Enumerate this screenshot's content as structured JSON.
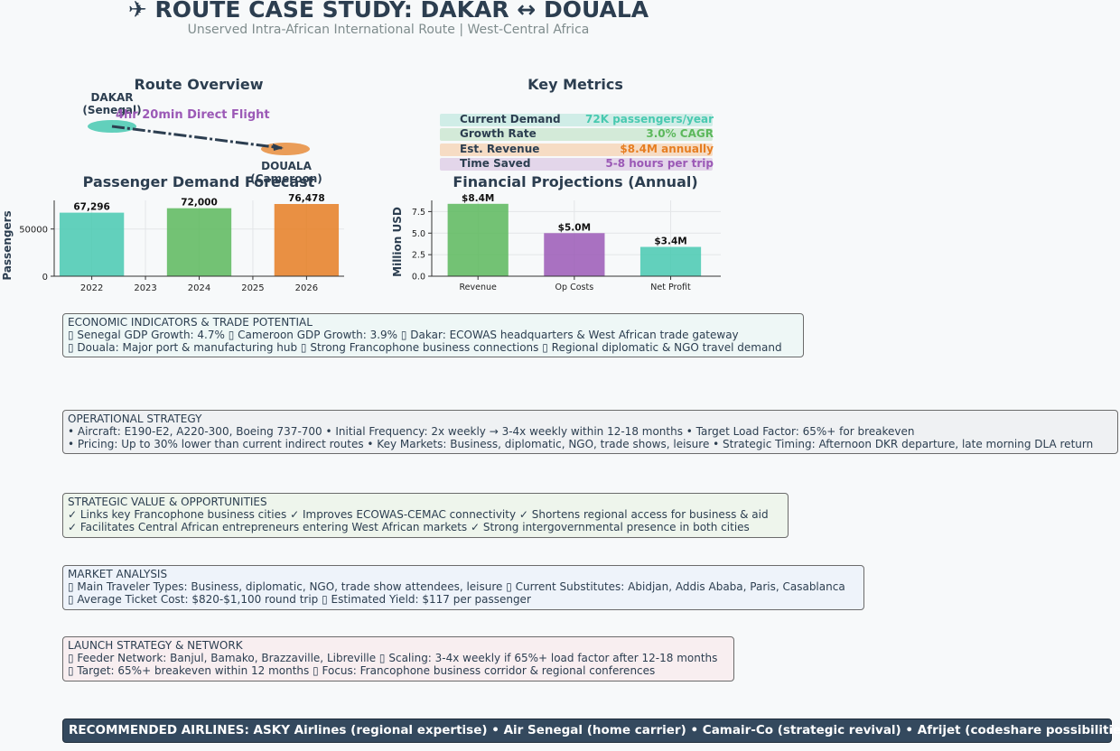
{
  "header": {
    "title": "✈ ROUTE CASE STUDY: DAKAR ↔ DOUALA",
    "subtitle": "Unserved Intra-African International Route | West-Central Africa"
  },
  "route_overview": {
    "title": "Route Overview",
    "origin_lines": [
      "DAKAR",
      "(Senegal)"
    ],
    "destination_lines": [
      "DOUALA",
      "(Cameroon)"
    ],
    "flight_label": "4hr 20min Direct Flight",
    "origin_color": "#48c9b0",
    "destination_color": "#e67e22"
  },
  "key_metrics": {
    "title": "Key Metrics",
    "items": [
      {
        "label": "Current Demand",
        "value": "72K passengers/year",
        "color": "#48c9b0",
        "bg": "#d0ede7"
      },
      {
        "label": "Growth Rate",
        "value": "3.0% CAGR",
        "color": "#5cb85c",
        "bg": "#d3ead8"
      },
      {
        "label": "Est. Revenue",
        "value": "$8.4M annually",
        "color": "#e67e22",
        "bg": "#f6dcc4"
      },
      {
        "label": "Time Saved",
        "value": "5-8 hours per trip",
        "color": "#9b59b6",
        "bg": "#e3d6ea"
      }
    ]
  },
  "chart_data": [
    {
      "type": "bar",
      "title": "Passenger Demand Forecast",
      "xlabel": "",
      "ylabel": "Passengers",
      "categories": [
        "2022",
        "2024",
        "2026"
      ],
      "values": [
        67296,
        72000,
        76478
      ],
      "data_labels": [
        "67,296",
        "72,000",
        "76,478"
      ],
      "colors": [
        "#48c9b0",
        "#5cb85c",
        "#e67e22"
      ],
      "x_ticks": [
        "2022",
        "2023",
        "2024",
        "2025",
        "2026"
      ],
      "x_tick_values": [
        2022,
        2023,
        2024,
        2025,
        2026
      ],
      "x_values": [
        2022,
        2024,
        2026
      ],
      "xlim": [
        2021.3,
        2026.7
      ],
      "y_ticks": [
        "0",
        "50000"
      ],
      "y_tick_values": [
        0,
        50000
      ],
      "ylim": [
        0,
        80300
      ],
      "grid": true
    },
    {
      "type": "bar",
      "title": "Financial Projections (Annual)",
      "xlabel": "",
      "ylabel": "Million USD",
      "categories": [
        "Revenue",
        "Op Costs",
        "Net Profit"
      ],
      "values": [
        8.4,
        5.0,
        3.4
      ],
      "data_labels": [
        "$8.4M",
        "$5.0M",
        "$3.4M"
      ],
      "colors": [
        "#5cb85c",
        "#9b59b6",
        "#48c9b0"
      ],
      "y_ticks": [
        "0.0",
        "2.5",
        "5.0",
        "7.5"
      ],
      "y_tick_values": [
        0,
        2.5,
        5.0,
        7.5
      ],
      "ylim": [
        0,
        8.8
      ],
      "grid": true
    }
  ],
  "boxes": [
    {
      "key": "economic",
      "title": "ECONOMIC INDICATORS & TRADE POTENTIAL",
      "lines": [
        "▯ Senegal GDP Growth: 4.7%  ▯ Cameroon GDP Growth: 3.9%  ▯ Dakar: ECOWAS headquarters & West African trade gateway",
        "▯ Douala: Major port & manufacturing hub  ▯ Strong Francophone business connections  ▯ Regional diplomatic & NGO travel demand"
      ],
      "bg": "#eef7f6"
    },
    {
      "key": "operational",
      "title": "OPERATIONAL STRATEGY",
      "lines": [
        "• Aircraft: E190-E2, A220-300, Boeing 737-700  • Initial Frequency: 2x weekly → 3-4x weekly within 12-18 months  • Target Load Factor: 65%+ for breakeven",
        "• Pricing: Up to 30% lower than current indirect routes  • Key Markets: Business, diplomatic, NGO, trade shows, leisure  • Strategic Timing: Afternoon DKR departure, late morning DLA return"
      ],
      "bg": "#eff1f3"
    },
    {
      "key": "strategic",
      "title": "STRATEGIC VALUE & OPPORTUNITIES",
      "lines": [
        "✓ Links key Francophone business cities  ✓ Improves ECOWAS-CEMAC connectivity  ✓ Shortens regional access for business & aid",
        "✓ Facilitates Central African entrepreneurs entering West African markets  ✓ Strong intergovernmental presence in both cities"
      ],
      "bg": "#eef5ec"
    },
    {
      "key": "market",
      "title": "MARKET ANALYSIS",
      "lines": [
        "▯ Main Traveler Types: Business, diplomatic, NGO, trade show attendees, leisure  ▯ Current Substitutes: Abidjan, Addis Ababa, Paris, Casablanca",
        "▯ Average Ticket Cost: $820-$1,100 round trip  ▯ Estimated Yield: $117 per passenger"
      ],
      "bg": "#eef3fa"
    },
    {
      "key": "launch",
      "title": "LAUNCH STRATEGY & NETWORK",
      "lines": [
        "▯ Feeder Network: Banjul, Bamako, Brazzaville, Libreville  ▯ Scaling: 3-4x weekly if 65%+ load factor after 12-18 months",
        "▯ Target: 65%+ breakeven within 12 months  ▯ Focus: Francophone business corridor & regional conferences"
      ],
      "bg": "#f8eef0"
    }
  ],
  "recommended": {
    "text": "RECOMMENDED AIRLINES: ASKY Airlines (regional expertise) • Air Senegal (home carrier) • Camair-Co (strategic revival) • Afrijet (codeshare possibilities)"
  }
}
